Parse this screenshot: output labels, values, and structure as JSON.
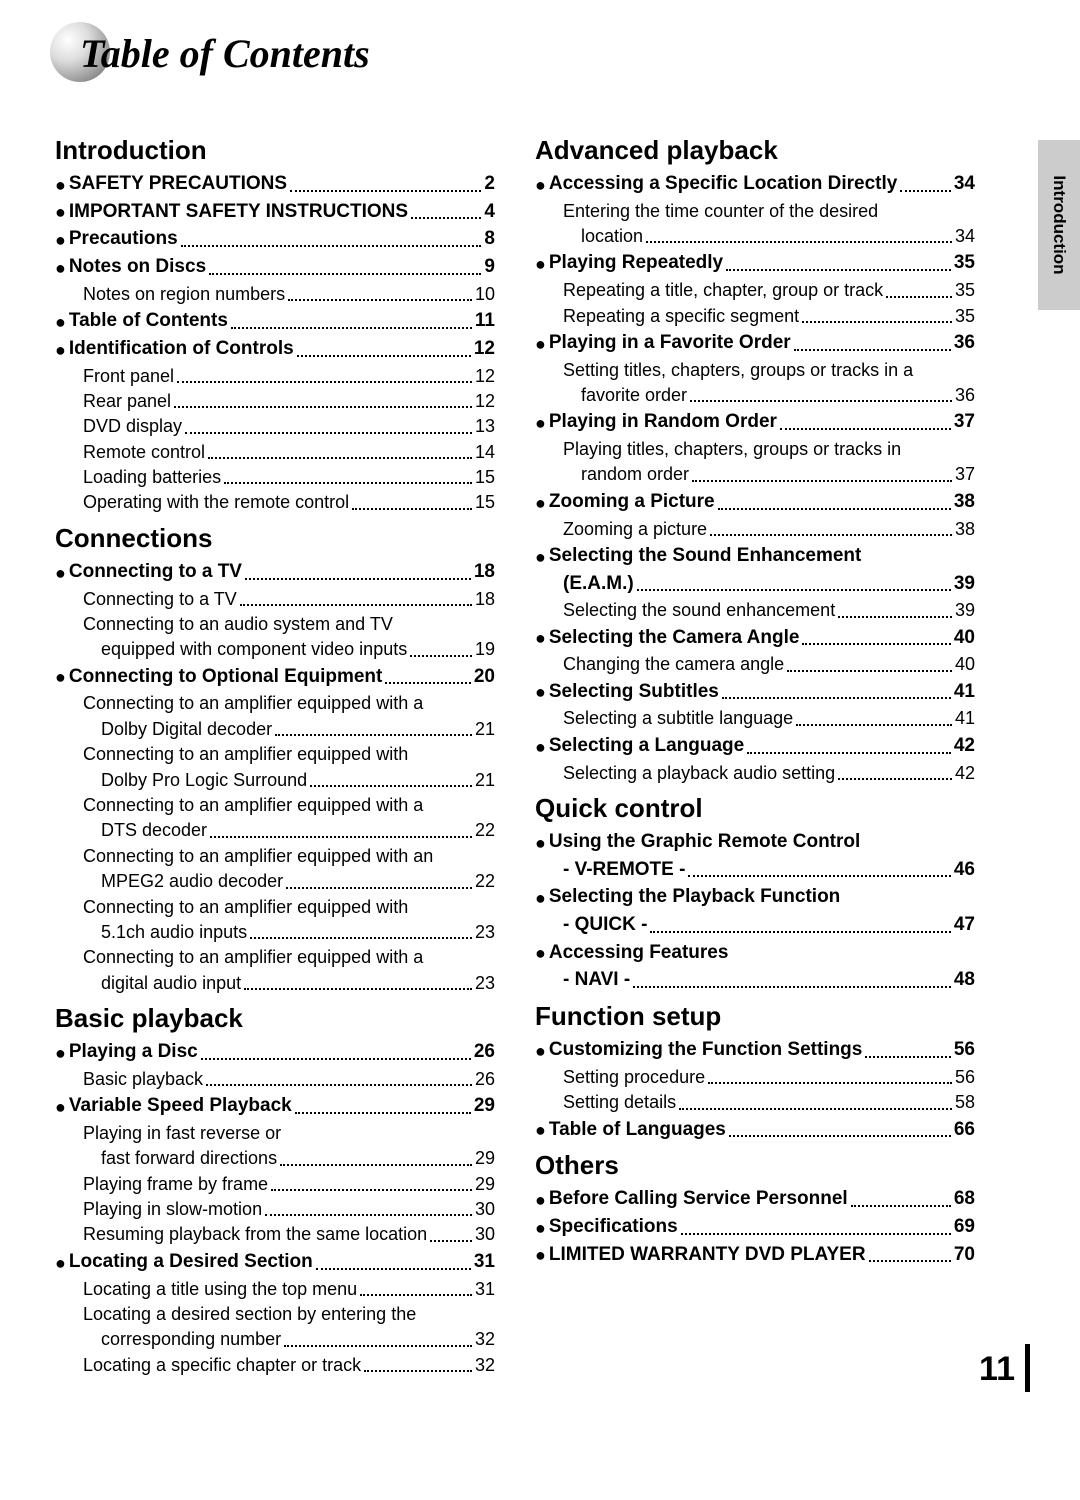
{
  "title": "Table of Contents",
  "side_tab": "Introduction",
  "page_number": "11",
  "left": [
    {
      "type": "section",
      "text": "Introduction"
    },
    {
      "type": "main",
      "text": "SAFETY PRECAUTIONS",
      "page": "2"
    },
    {
      "type": "main",
      "text": "IMPORTANT SAFETY INSTRUCTIONS",
      "page": "4"
    },
    {
      "type": "main",
      "text": "Precautions",
      "page": "8"
    },
    {
      "type": "main",
      "text": "Notes on Discs",
      "page": "9"
    },
    {
      "type": "sub",
      "text": "Notes on region numbers",
      "page": "10"
    },
    {
      "type": "main",
      "text": "Table of Contents",
      "page": "11"
    },
    {
      "type": "main",
      "text": "Identification of Controls",
      "page": "12"
    },
    {
      "type": "sub",
      "text": "Front panel",
      "page": "12"
    },
    {
      "type": "sub",
      "text": "Rear panel",
      "page": "12"
    },
    {
      "type": "sub",
      "text": "DVD display",
      "page": "13"
    },
    {
      "type": "sub",
      "text": "Remote control",
      "page": "14"
    },
    {
      "type": "sub",
      "text": "Loading batteries",
      "page": "15"
    },
    {
      "type": "sub",
      "text": "Operating with the remote control",
      "page": "15"
    },
    {
      "type": "section",
      "text": "Connections"
    },
    {
      "type": "main",
      "text": "Connecting to a TV",
      "page": "18"
    },
    {
      "type": "sub",
      "text": "Connecting to a TV",
      "page": "18"
    },
    {
      "type": "sub",
      "text": "Connecting to an audio system and TV",
      "text2": "equipped with component video inputs",
      "page": "19"
    },
    {
      "type": "main",
      "text": "Connecting to Optional Equipment",
      "page": "20"
    },
    {
      "type": "sub",
      "text": "Connecting to an amplifier equipped with a",
      "text2": "Dolby Digital decoder",
      "page": "21"
    },
    {
      "type": "sub",
      "text": "Connecting to an amplifier equipped with",
      "text2": "Dolby Pro Logic Surround",
      "page": "21"
    },
    {
      "type": "sub",
      "text": "Connecting to an amplifier equipped with a",
      "text2": "DTS decoder",
      "page": "22"
    },
    {
      "type": "sub",
      "text": "Connecting to an amplifier equipped with an",
      "text2": "MPEG2 audio decoder",
      "page": "22"
    },
    {
      "type": "sub",
      "text": "Connecting to an amplifier equipped with",
      "text2": "5.1ch audio inputs",
      "page": "23"
    },
    {
      "type": "sub",
      "text": "Connecting to an amplifier equipped with a",
      "text2": "digital audio input",
      "page": "23"
    },
    {
      "type": "section",
      "text": "Basic playback"
    },
    {
      "type": "main",
      "text": "Playing a Disc",
      "page": "26"
    },
    {
      "type": "sub",
      "text": "Basic playback",
      "page": "26"
    },
    {
      "type": "main",
      "text": "Variable Speed Playback",
      "page": "29"
    },
    {
      "type": "sub",
      "text": "Playing in fast reverse or",
      "text2": "fast forward directions",
      "page": "29"
    },
    {
      "type": "sub",
      "text": "Playing frame by frame",
      "page": "29"
    },
    {
      "type": "sub",
      "text": "Playing in slow-motion",
      "page": "30"
    },
    {
      "type": "sub",
      "text": "Resuming playback from the same location",
      "page": "30"
    },
    {
      "type": "main",
      "text": "Locating a Desired Section",
      "page": "31"
    },
    {
      "type": "sub",
      "text": "Locating a title using the top menu",
      "page": "31"
    },
    {
      "type": "sub",
      "text": "Locating a desired section by entering the",
      "text2": "corresponding number",
      "page": "32"
    },
    {
      "type": "sub",
      "text": "Locating a specific chapter or track",
      "page": "32"
    }
  ],
  "right": [
    {
      "type": "section",
      "text": "Advanced playback"
    },
    {
      "type": "main",
      "text": "Accessing a Specific Location Directly",
      "page": "34"
    },
    {
      "type": "sub",
      "text": "Entering the time counter of the desired",
      "text2": "location",
      "page": "34"
    },
    {
      "type": "main",
      "text": "Playing Repeatedly",
      "page": "35"
    },
    {
      "type": "sub",
      "text": "Repeating a title, chapter, group or track",
      "page": "35"
    },
    {
      "type": "sub",
      "text": "Repeating a specific segment",
      "page": "35"
    },
    {
      "type": "main",
      "text": "Playing in a Favorite Order",
      "page": "36"
    },
    {
      "type": "sub",
      "text": "Setting titles, chapters, groups or tracks in a",
      "text2": "favorite order",
      "page": "36"
    },
    {
      "type": "main",
      "text": "Playing in Random Order",
      "page": "37"
    },
    {
      "type": "sub",
      "text": "Playing titles, chapters, groups or tracks in",
      "text2": "random order",
      "page": "37"
    },
    {
      "type": "main",
      "text": "Zooming a Picture",
      "page": "38"
    },
    {
      "type": "sub",
      "text": "Zooming a picture",
      "page": "38"
    },
    {
      "type": "main",
      "text": "Selecting the Sound Enhancement",
      "textLine2": "(E.A.M.)",
      "page": "39"
    },
    {
      "type": "sub",
      "text": "Selecting the sound enhancement",
      "page": "39"
    },
    {
      "type": "main",
      "text": "Selecting the Camera Angle",
      "page": "40"
    },
    {
      "type": "sub",
      "text": "Changing the camera angle",
      "page": "40"
    },
    {
      "type": "main",
      "text": "Selecting Subtitles",
      "page": "41"
    },
    {
      "type": "sub",
      "text": "Selecting a subtitle language",
      "page": "41"
    },
    {
      "type": "main",
      "text": "Selecting a Language",
      "page": "42"
    },
    {
      "type": "sub",
      "text": "Selecting a playback audio setting",
      "page": "42"
    },
    {
      "type": "section",
      "text": "Quick control"
    },
    {
      "type": "main",
      "text": "Using the Graphic Remote Control",
      "textLine2": "- V-REMOTE -",
      "page": "46"
    },
    {
      "type": "main",
      "text": "Selecting the Playback Function",
      "textLine2": "- QUICK -",
      "page": "47"
    },
    {
      "type": "main",
      "text": "Accessing Features",
      "textLine2": "- NAVI -",
      "page": "48"
    },
    {
      "type": "section",
      "text": "Function setup"
    },
    {
      "type": "main",
      "text": "Customizing the Function Settings",
      "page": "56"
    },
    {
      "type": "sub",
      "text": "Setting procedure",
      "page": "56"
    },
    {
      "type": "sub",
      "text": "Setting details",
      "page": "58"
    },
    {
      "type": "main",
      "text": "Table of Languages",
      "page": "66"
    },
    {
      "type": "section",
      "text": "Others"
    },
    {
      "type": "main",
      "text": "Before Calling Service Personnel",
      "page": "68"
    },
    {
      "type": "main",
      "text": "Specifications",
      "page": "69"
    },
    {
      "type": "main",
      "text": "LIMITED WARRANTY DVD PLAYER",
      "page": "70"
    }
  ]
}
